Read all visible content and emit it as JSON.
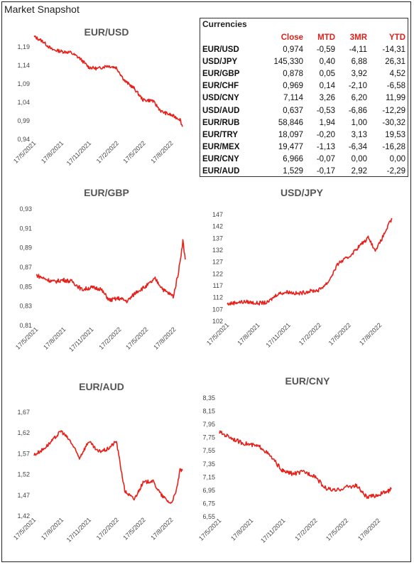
{
  "page": {
    "title": "Market Snapshot"
  },
  "table": {
    "caption": "Currencies",
    "headers": [
      "Close",
      "MTD",
      "3MR",
      "YTD"
    ],
    "rows": [
      {
        "pair": "EUR/USD",
        "close": "0,974",
        "mtd": "-0,59",
        "r3m": "-4,11",
        "ytd": "-14,31"
      },
      {
        "pair": "USD/JPY",
        "close": "145,330",
        "mtd": "0,40",
        "r3m": "6,88",
        "ytd": "26,31"
      },
      {
        "pair": "EUR/GBP",
        "close": "0,878",
        "mtd": "0,05",
        "r3m": "3,92",
        "ytd": "4,52"
      },
      {
        "pair": "EUR/CHF",
        "close": "0,969",
        "mtd": "0,14",
        "r3m": "-2,10",
        "ytd": "-6,58"
      },
      {
        "pair": "USD/CNY",
        "close": "7,114",
        "mtd": "3,26",
        "r3m": "6,20",
        "ytd": "11,99"
      },
      {
        "pair": "USD/AUD",
        "close": "0,637",
        "mtd": "-0,53",
        "r3m": "-6,86",
        "ytd": "-12,29"
      },
      {
        "pair": "EUR/RUB",
        "close": "58,846",
        "mtd": "1,94",
        "r3m": "1,00",
        "ytd": "-30,32"
      },
      {
        "pair": "EUR/TRY",
        "close": "18,097",
        "mtd": "-0,20",
        "r3m": "3,13",
        "ytd": "19,53"
      },
      {
        "pair": "EUR/MEX",
        "close": "19,477",
        "mtd": "-1,13",
        "r3m": "-6,34",
        "ytd": "-16,28"
      },
      {
        "pair": "EUR/CNY",
        "close": "6,966",
        "mtd": "-0,07",
        "r3m": "0,00",
        "ytd": "0,00"
      },
      {
        "pair": "EUR/AUD",
        "close": "1,529",
        "mtd": "-0,17",
        "r3m": "2,92",
        "ytd": "-2,29"
      }
    ]
  },
  "chart_data": [
    {
      "id": "eurusd",
      "type": "line",
      "title": "EUR/USD",
      "color": "#e8201a",
      "x_ticks": [
        "17/5/2021",
        "17/8/2021",
        "17/11/2021",
        "17/2/2022",
        "17/5/2022",
        "17/8/2022"
      ],
      "y_ticks": [
        "1,19",
        "1,14",
        "1,09",
        "1,04",
        "0,99",
        "0,94"
      ],
      "ylim": [
        0.94,
        1.19
      ],
      "x": [
        "2021-05-17",
        "2021-06-15",
        "2021-07-15",
        "2021-08-15",
        "2021-09-15",
        "2021-10-15",
        "2021-11-15",
        "2021-12-15",
        "2022-01-15",
        "2022-02-15",
        "2022-03-15",
        "2022-04-15",
        "2022-05-15",
        "2022-06-15",
        "2022-07-15",
        "2022-08-15",
        "2022-09-15",
        "2022-09-23"
      ],
      "values": [
        1.218,
        1.205,
        1.183,
        1.178,
        1.175,
        1.16,
        1.135,
        1.131,
        1.139,
        1.134,
        1.098,
        1.078,
        1.046,
        1.045,
        1.015,
        1.006,
        0.994,
        0.974
      ]
    },
    {
      "id": "eurgbp",
      "type": "line",
      "title": "EUR/GBP",
      "color": "#e8201a",
      "x_ticks": [
        "17/5/2021",
        "17/8/2021",
        "17/11/2021",
        "17/2/2022",
        "17/5/2022",
        "17/8/2022"
      ],
      "y_ticks": [
        "0,93",
        "0,91",
        "0,89",
        "0,87",
        "0,85",
        "0,83",
        "0,81"
      ],
      "ylim": [
        0.81,
        0.93
      ],
      "x": [
        "2021-05-17",
        "2021-06-15",
        "2021-07-15",
        "2021-08-15",
        "2021-09-15",
        "2021-10-15",
        "2021-11-15",
        "2021-12-15",
        "2022-01-15",
        "2022-02-15",
        "2022-03-15",
        "2022-04-15",
        "2022-05-15",
        "2022-06-15",
        "2022-07-15",
        "2022-08-15",
        "2022-09-01",
        "2022-09-15",
        "2022-09-23"
      ],
      "values": [
        0.862,
        0.858,
        0.855,
        0.857,
        0.855,
        0.847,
        0.849,
        0.848,
        0.836,
        0.838,
        0.835,
        0.845,
        0.85,
        0.858,
        0.846,
        0.84,
        0.866,
        0.897,
        0.878
      ]
    },
    {
      "id": "usdjpy",
      "type": "line",
      "title": "USD/JPY",
      "color": "#e8201a",
      "x_ticks": [
        "17/5/2021",
        "17/8/2021",
        "17/11/2021",
        "17/2/2022",
        "17/5/2022",
        "17/8/2022"
      ],
      "y_ticks": [
        "147",
        "142",
        "137",
        "132",
        "127",
        "122",
        "117",
        "112",
        "107",
        "102"
      ],
      "ylim": [
        102,
        147
      ],
      "x": [
        "2021-05-17",
        "2021-06-15",
        "2021-07-15",
        "2021-08-15",
        "2021-09-15",
        "2021-10-15",
        "2021-11-15",
        "2021-12-15",
        "2022-01-15",
        "2022-02-15",
        "2022-03-15",
        "2022-04-15",
        "2022-05-15",
        "2022-06-15",
        "2022-07-15",
        "2022-08-01",
        "2022-08-15",
        "2022-09-15",
        "2022-09-23"
      ],
      "values": [
        109.2,
        110.0,
        110.2,
        109.6,
        109.9,
        113.6,
        114.4,
        113.6,
        114.6,
        115.1,
        118.5,
        126.5,
        129.0,
        133.5,
        137.5,
        132.0,
        134.5,
        143.5,
        145.3
      ]
    },
    {
      "id": "euraud",
      "type": "line",
      "title": "EUR/AUD",
      "color": "#e8201a",
      "x_ticks": [
        "17/5/2021",
        "17/8/2021",
        "17/11/2021",
        "17/2/2022",
        "17/5/2022",
        "17/8/2022"
      ],
      "y_ticks": [
        "1,67",
        "1,62",
        "1,57",
        "1,52",
        "1,47",
        "1,42"
      ],
      "ylim": [
        1.42,
        1.67
      ],
      "x": [
        "2021-05-17",
        "2021-06-15",
        "2021-07-15",
        "2021-08-15",
        "2021-09-15",
        "2021-10-15",
        "2021-11-15",
        "2021-12-15",
        "2022-01-15",
        "2022-02-15",
        "2022-03-01",
        "2022-03-15",
        "2022-04-15",
        "2022-05-15",
        "2022-06-15",
        "2022-07-15",
        "2022-08-15",
        "2022-09-01",
        "2022-09-15",
        "2022-09-23"
      ],
      "values": [
        1.567,
        1.58,
        1.6,
        1.625,
        1.6,
        1.56,
        1.6,
        1.575,
        1.58,
        1.6,
        1.54,
        1.48,
        1.46,
        1.5,
        1.505,
        1.47,
        1.45,
        1.475,
        1.53,
        1.529
      ]
    },
    {
      "id": "eurcny",
      "type": "line",
      "title": "EUR/CNY",
      "color": "#e8201a",
      "x_ticks": [
        "17/5/2021",
        "17/8/2021",
        "17/11/2021",
        "17/2/2022",
        "17/5/2022",
        "17/8/2022"
      ],
      "y_ticks": [
        "8,35",
        "8,15",
        "7,95",
        "7,75",
        "7,55",
        "7,35",
        "7,15",
        "6,95",
        "6,75",
        "6,55"
      ],
      "ylim": [
        6.55,
        8.35
      ],
      "x": [
        "2021-05-17",
        "2021-06-15",
        "2021-07-15",
        "2021-08-15",
        "2021-09-15",
        "2021-10-15",
        "2021-11-15",
        "2021-12-15",
        "2022-01-15",
        "2022-02-15",
        "2022-03-15",
        "2022-04-15",
        "2022-05-15",
        "2022-06-15",
        "2022-07-15",
        "2022-08-15",
        "2022-09-15",
        "2022-09-23"
      ],
      "values": [
        7.83,
        7.76,
        7.68,
        7.64,
        7.6,
        7.44,
        7.24,
        7.2,
        7.23,
        7.17,
        6.99,
        6.94,
        7.0,
        7.02,
        6.84,
        6.88,
        6.94,
        6.966
      ]
    }
  ]
}
